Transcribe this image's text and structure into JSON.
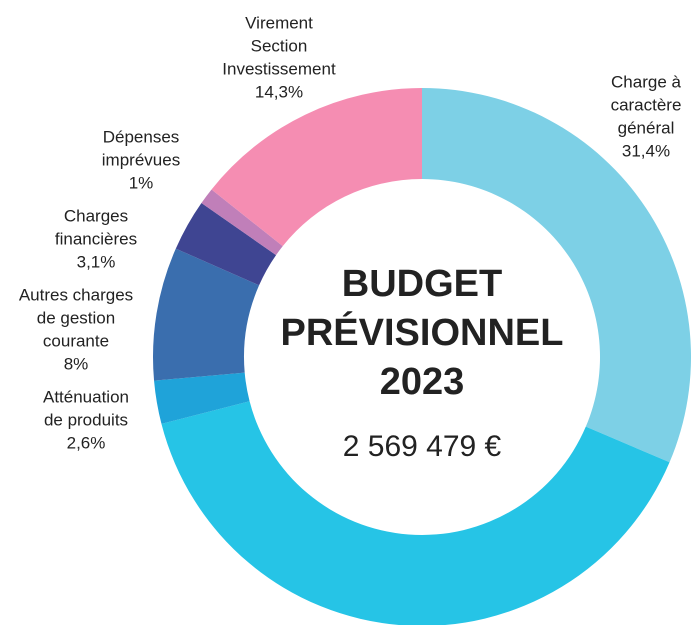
{
  "chart_data": {
    "type": "donut",
    "title": [
      "BUDGET",
      "PRÉVISIONNEL",
      "2023"
    ],
    "subtitle": "2 569 479 €",
    "categories": [
      [
        "Charge à",
        "caractère",
        "général"
      ],
      null,
      [
        "Atténuation",
        "de produits"
      ],
      [
        "Autres charges",
        "de gestion",
        "courante"
      ],
      [
        "Charges",
        "financières"
      ],
      [
        "Dépenses",
        "imprévues"
      ],
      [
        "Virement",
        "Section",
        "Investissement"
      ]
    ],
    "values": [
      31.4,
      39.6,
      2.6,
      8,
      3.1,
      1,
      14.3
    ],
    "value_labels": [
      "31,4%",
      null,
      "2,6%",
      "8%",
      "3,1%",
      "1%",
      "14,3%"
    ],
    "colors": [
      "#7dd0e6",
      "#26c4e6",
      "#1fa3d9",
      "#3a6eae",
      "#3f4592",
      "#c07fb9",
      "#f58db2"
    ]
  }
}
